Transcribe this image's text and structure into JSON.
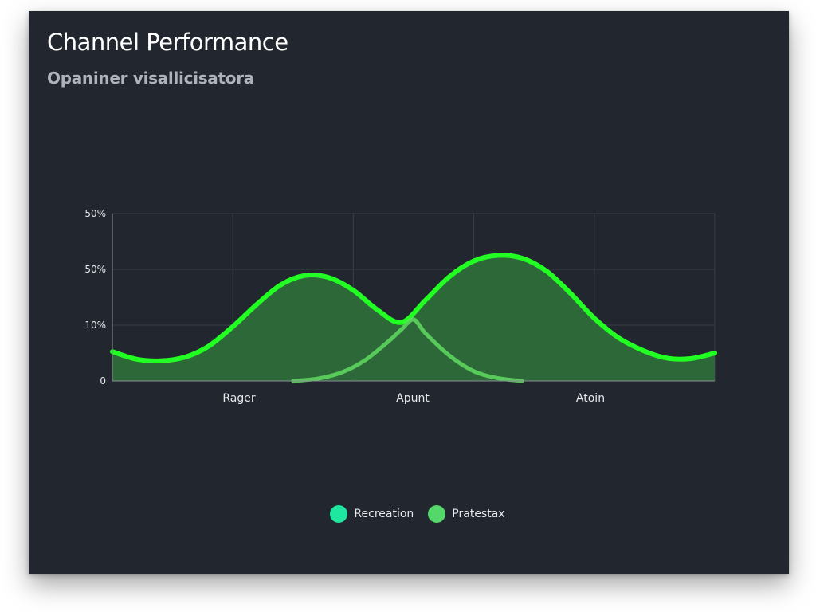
{
  "card": {
    "title": "Channel Performance",
    "subtitle": "Opaniner visallicisatora"
  },
  "colors": {
    "background": "#22262e",
    "grid": "#3a3f48",
    "axis": "#8a8f98",
    "tick_text": "#e6e8ec",
    "series_main": "#22ff22",
    "series_secondary": "#5fdc5f",
    "fill": "#2e6b3a",
    "legend_recreation": "#1ee8a0",
    "legend_pratestax": "#55d86a"
  },
  "chart_data": {
    "type": "area",
    "title": "Channel Performance",
    "subtitle": "Opaniner visallicisatora",
    "x_tick_labels": [
      "Rager",
      "Apunt",
      "Atoin"
    ],
    "y_tick_labels": [
      "0",
      "10%",
      "50%",
      "50%"
    ],
    "ylim": [
      0,
      60
    ],
    "xlim": [
      0,
      10
    ],
    "grid": true,
    "legend_position": "bottom-center",
    "series": [
      {
        "name": "Recreation",
        "color": "#22ff22",
        "filled": true,
        "points": [
          [
            0,
            10.5
          ],
          [
            0.4,
            7.8
          ],
          [
            0.8,
            7.2
          ],
          [
            1.2,
            8.5
          ],
          [
            1.6,
            12.5
          ],
          [
            2.0,
            19.5
          ],
          [
            2.4,
            27.5
          ],
          [
            2.8,
            34.5
          ],
          [
            3.2,
            37.8
          ],
          [
            3.6,
            37.0
          ],
          [
            4.0,
            32.5
          ],
          [
            4.4,
            25.5
          ],
          [
            4.8,
            21.0
          ],
          [
            5.2,
            29.0
          ],
          [
            5.6,
            37.5
          ],
          [
            6.0,
            43.0
          ],
          [
            6.4,
            45.0
          ],
          [
            6.8,
            44.0
          ],
          [
            7.2,
            39.5
          ],
          [
            7.6,
            31.5
          ],
          [
            8.0,
            22.5
          ],
          [
            8.4,
            15.5
          ],
          [
            8.8,
            11.0
          ],
          [
            9.2,
            8.2
          ],
          [
            9.6,
            8.0
          ],
          [
            10.0,
            10.0
          ]
        ]
      },
      {
        "name": "Pratestax",
        "color": "#5fdc5f",
        "filled": false,
        "points": [
          [
            3.0,
            0
          ],
          [
            3.4,
            0.8
          ],
          [
            3.8,
            3.0
          ],
          [
            4.2,
            7.5
          ],
          [
            4.6,
            14.5
          ],
          [
            4.8,
            18.5
          ],
          [
            5.0,
            22.0
          ],
          [
            5.2,
            17.0
          ],
          [
            5.6,
            9.0
          ],
          [
            6.0,
            3.5
          ],
          [
            6.4,
            1.0
          ],
          [
            6.8,
            0
          ]
        ]
      }
    ],
    "legend": [
      "Recreation",
      "Pratestax"
    ]
  },
  "legend": {
    "items": [
      {
        "label": "Recreation",
        "color": "#1ee8a0"
      },
      {
        "label": "Pratestax",
        "color": "#55d86a"
      }
    ]
  }
}
